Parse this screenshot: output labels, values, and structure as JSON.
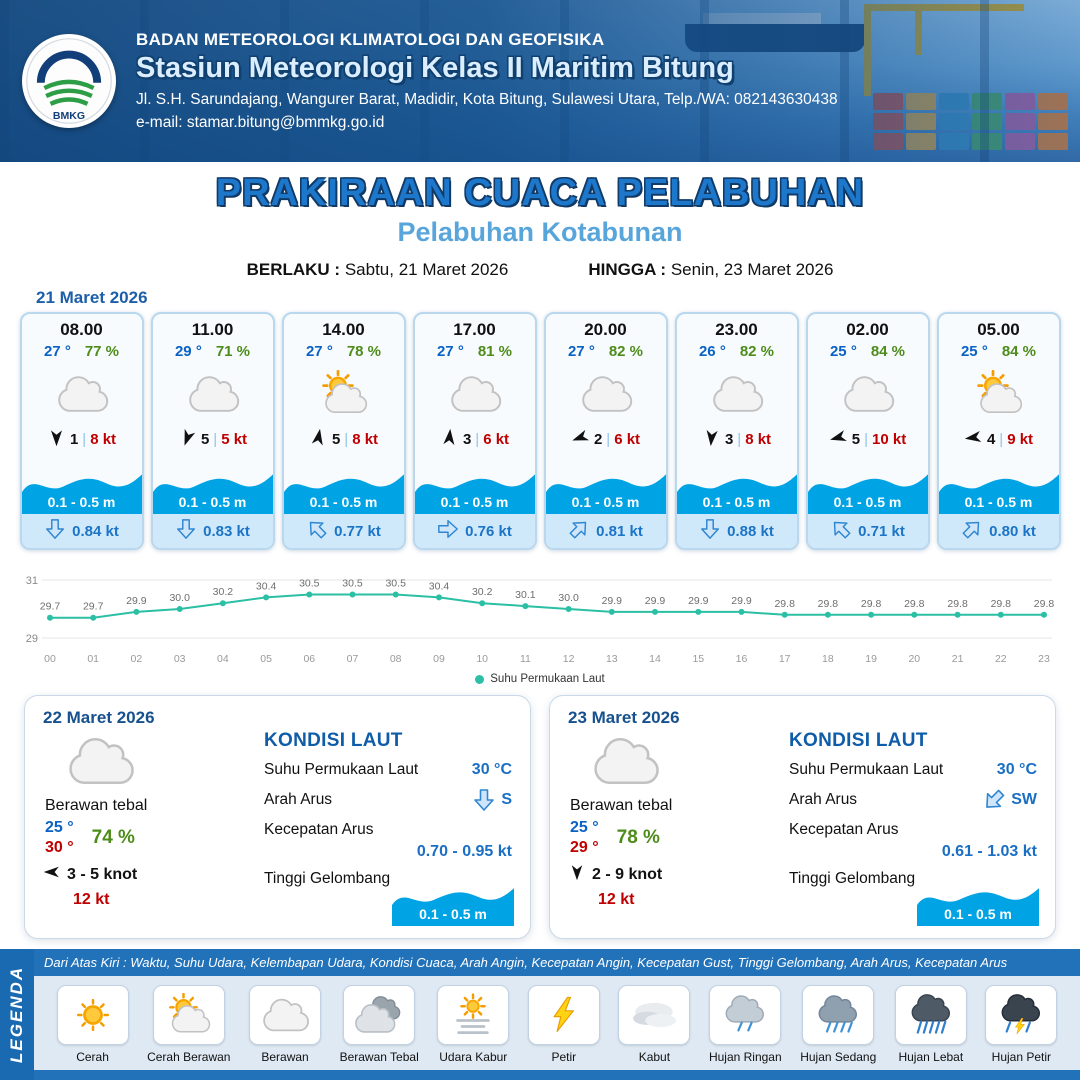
{
  "header": {
    "logo_text": "BMKG",
    "agency": "BADAN METEOROLOGI KLIMATOLOGI DAN GEOFISIKA",
    "station": "Stasiun Meteorologi Kelas II Maritim Bitung",
    "address": "Jl. S.H. Sarundajang, Wangurer Barat, Madidir, Kota Bitung, Sulawesi Utara, Telp./WA: 082143630438",
    "email": "e-mail: stamar.bitung@bmmkg.go.id"
  },
  "title": {
    "main": "PRAKIRAAN CUACA PELABUHAN",
    "subtitle": "Pelabuhan Kotabunan",
    "berlaku_label": "BERLAKU :",
    "berlaku_value": "Sabtu, 21 Maret 2026",
    "hingga_label": "HINGGA :",
    "hingga_value": "Senin, 23 Maret 2026"
  },
  "forecast": {
    "date": "21 Maret 2026",
    "cards": [
      {
        "time": "08.00",
        "temp": "27 °",
        "humidity": "77 %",
        "icon": "cloud",
        "wind_rot": 180,
        "wind_num": "1",
        "wind_speed": "8 kt",
        "wave": "0.1 - 0.5 m",
        "current_rot": 180,
        "current": "0.84 kt"
      },
      {
        "time": "11.00",
        "temp": "29 °",
        "humidity": "71 %",
        "icon": "cloud",
        "wind_rot": 200,
        "wind_num": "5",
        "wind_speed": "5 kt",
        "wave": "0.1 - 0.5 m",
        "current_rot": 180,
        "current": "0.83 kt"
      },
      {
        "time": "14.00",
        "temp": "27 °",
        "humidity": "78 %",
        "icon": "sun-cloud",
        "wind_rot": 10,
        "wind_num": "5",
        "wind_speed": "8 kt",
        "wave": "0.1 - 0.5 m",
        "current_rot": 315,
        "current": "0.77 kt"
      },
      {
        "time": "17.00",
        "temp": "27 °",
        "humidity": "81 %",
        "icon": "cloud",
        "wind_rot": 5,
        "wind_num": "3",
        "wind_speed": "6 kt",
        "wave": "0.1 - 0.5 m",
        "current_rot": 90,
        "current": "0.76 kt"
      },
      {
        "time": "20.00",
        "temp": "27 °",
        "humidity": "82 %",
        "icon": "cloud",
        "wind_rot": 250,
        "wind_num": "2",
        "wind_speed": "6 kt",
        "wave": "0.1 - 0.5 m",
        "current_rot": 45,
        "current": "0.81 kt"
      },
      {
        "time": "23.00",
        "temp": "26 °",
        "humidity": "82 %",
        "icon": "cloud",
        "wind_rot": 185,
        "wind_num": "3",
        "wind_speed": "8 kt",
        "wave": "0.1 - 0.5 m",
        "current_rot": 180,
        "current": "0.88 kt"
      },
      {
        "time": "02.00",
        "temp": "25 °",
        "humidity": "84 %",
        "icon": "cloud",
        "wind_rot": 255,
        "wind_num": "5",
        "wind_speed": "10 kt",
        "wave": "0.1 - 0.5 m",
        "current_rot": 315,
        "current": "0.71 kt"
      },
      {
        "time": "05.00",
        "temp": "25 °",
        "humidity": "84 %",
        "icon": "sun-cloud",
        "wind_rot": 262,
        "wind_num": "4",
        "wind_speed": "9 kt",
        "wave": "0.1 - 0.5 m",
        "current_rot": 45,
        "current": "0.80 kt"
      }
    ]
  },
  "chart_data": {
    "type": "line",
    "title": "Suhu Permukaan Laut",
    "legend": "Suhu Permukaan Laut",
    "x": [
      "00",
      "01",
      "02",
      "03",
      "04",
      "05",
      "06",
      "07",
      "08",
      "09",
      "10",
      "11",
      "12",
      "13",
      "14",
      "15",
      "16",
      "17",
      "18",
      "19",
      "20",
      "21",
      "22",
      "23"
    ],
    "values": [
      29.7,
      29.7,
      29.9,
      30.0,
      30.2,
      30.4,
      30.5,
      30.5,
      30.5,
      30.4,
      30.2,
      30.1,
      30.0,
      29.9,
      29.9,
      29.9,
      29.9,
      29.8,
      29.8,
      29.8,
      29.8,
      29.8,
      29.8,
      29.8
    ],
    "ylim": [
      29,
      31
    ],
    "xlabel": "",
    "ylabel": "",
    "grid": true,
    "legend_position": "bottom",
    "line_color": "#2bbfa4"
  },
  "day_cards": [
    {
      "date": "22 Maret 2026",
      "icon": "cloud",
      "condition": "Berawan tebal",
      "temp_min": "25 °",
      "temp_max": "30 °",
      "humidity": "74 %",
      "wind_rot": 270,
      "wind_range": "3  - 5 knot",
      "gust": "12 kt",
      "sea_title": "KONDISI LAUT",
      "sst_label": "Suhu Permukaan Laut",
      "sst": "30 °C",
      "current_dir_label": "Arah Arus",
      "current_rot": 180,
      "current_dir": "S",
      "current_speed_label": "Kecepatan Arus",
      "current_speed": "0.70 - 0.95 kt",
      "wave_label": "Tinggi Gelombang",
      "wave": "0.1 - 0.5 m"
    },
    {
      "date": "23 Maret 2026",
      "icon": "cloud",
      "condition": "Berawan tebal",
      "temp_min": "25 °",
      "temp_max": "29 °",
      "humidity": "78 %",
      "wind_rot": 180,
      "wind_range": "2  - 9 knot",
      "gust": "12 kt",
      "sea_title": "KONDISI LAUT",
      "sst_label": "Suhu Permukaan Laut",
      "sst": "30 °C",
      "current_dir_label": "Arah Arus",
      "current_rot": 225,
      "current_dir": "SW",
      "current_speed_label": "Kecepatan Arus",
      "current_speed": "0.61 - 1.03 kt",
      "wave_label": "Tinggi Gelombang",
      "wave": "0.1 - 0.5 m"
    }
  ],
  "legend": {
    "title": "LEGENDA",
    "note": "Dari Atas Kiri : Waktu, Suhu Udara, Kelembapan Udara, Kondisi Cuaca, Arah Angin, Kecepatan Angin, Kecepatan Gust, Tinggi Gelombang, Arah Arus, Kecepatan Arus",
    "items": [
      {
        "label": "Cerah",
        "icon": "sun"
      },
      {
        "label": "Cerah Berawan",
        "icon": "sun-cloud"
      },
      {
        "label": "Berawan",
        "icon": "cloud"
      },
      {
        "label": "Berawan Tebal",
        "icon": "cloud-dark"
      },
      {
        "label": "Udara Kabur",
        "icon": "haze"
      },
      {
        "label": "Petir",
        "icon": "lightning"
      },
      {
        "label": "Kabut",
        "icon": "fog"
      },
      {
        "label": "Hujan Ringan",
        "icon": "rain-light"
      },
      {
        "label": "Hujan Sedang",
        "icon": "rain-mod"
      },
      {
        "label": "Hujan Lebat",
        "icon": "rain-heavy"
      },
      {
        "label": "Hujan Petir",
        "icon": "storm"
      }
    ]
  },
  "colors": {
    "temp_blue": "#0a62c4",
    "humidity_green": "#4e8c1a",
    "speed_red": "#c00000",
    "wave_blue": "#00a3e4",
    "value_blue": "#1a6fc4",
    "title_blue": "#1d78cc",
    "subtitle_blue": "#58a5db",
    "header_blue": "#1a5a98",
    "sst_line_teal": "#2bbfa4"
  }
}
